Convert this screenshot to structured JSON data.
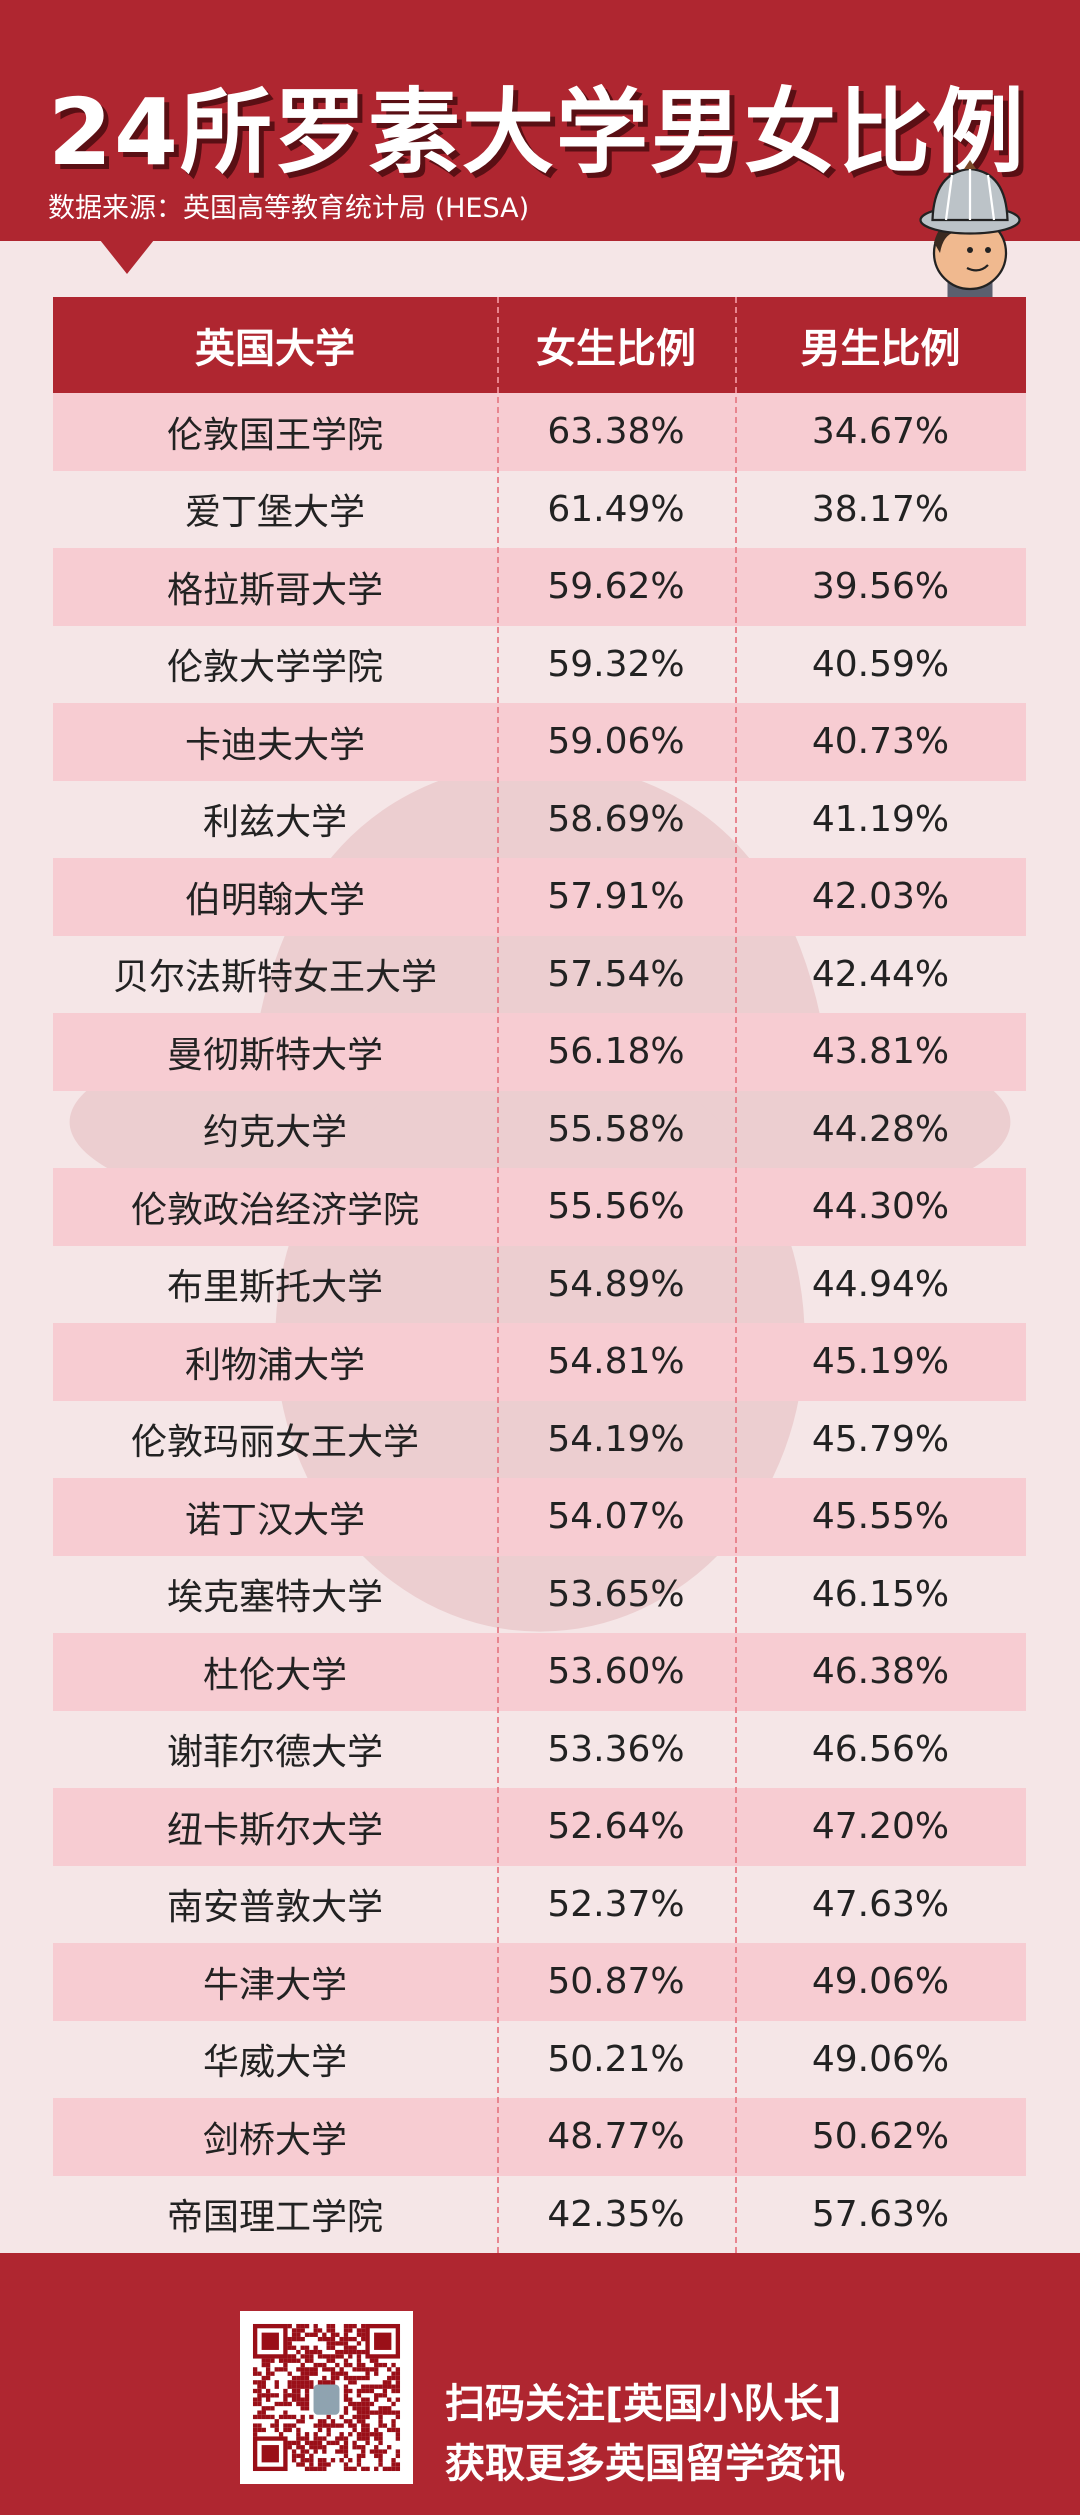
{
  "header": {
    "title": "24所罗素大学男女比例",
    "subtitle": "数据来源：英国高等教育统计局 (HESA)"
  },
  "colors": {
    "brand_red": "#af2630",
    "row_pink": "#f7ccd2",
    "background": "#f5e6e7"
  },
  "table": {
    "columns": [
      "英国大学",
      "女生比例",
      "男生比例"
    ],
    "rows": [
      [
        "伦敦国王学院",
        "63.38%",
        "34.67%"
      ],
      [
        "爱丁堡大学",
        "61.49%",
        "38.17%"
      ],
      [
        "格拉斯哥大学",
        "59.62%",
        "39.56%"
      ],
      [
        "伦敦大学学院",
        "59.32%",
        "40.59%"
      ],
      [
        "卡迪夫大学",
        "59.06%",
        "40.73%"
      ],
      [
        "利兹大学",
        "58.69%",
        "41.19%"
      ],
      [
        "伯明翰大学",
        "57.91%",
        "42.03%"
      ],
      [
        "贝尔法斯特女王大学",
        "57.54%",
        "42.44%"
      ],
      [
        "曼彻斯特大学",
        "56.18%",
        "43.81%"
      ],
      [
        "约克大学",
        "55.58%",
        "44.28%"
      ],
      [
        "伦敦政治经济学院",
        "55.56%",
        "44.30%"
      ],
      [
        "布里斯托大学",
        "54.89%",
        "44.94%"
      ],
      [
        "利物浦大学",
        "54.81%",
        "45.19%"
      ],
      [
        "伦敦玛丽女王大学",
        "54.19%",
        "45.79%"
      ],
      [
        "诺丁汉大学",
        "54.07%",
        "45.55%"
      ],
      [
        "埃克塞特大学",
        "53.65%",
        "46.15%"
      ],
      [
        "杜伦大学",
        "53.60%",
        "46.38%"
      ],
      [
        "谢菲尔德大学",
        "53.36%",
        "46.56%"
      ],
      [
        "纽卡斯尔大学",
        "52.64%",
        "47.20%"
      ],
      [
        "南安普敦大学",
        "52.37%",
        "47.63%"
      ],
      [
        "牛津大学",
        "50.87%",
        "49.06%"
      ],
      [
        "华威大学",
        "50.21%",
        "49.06%"
      ],
      [
        "剑桥大学",
        "48.77%",
        "50.62%"
      ],
      [
        "帝国理工学院",
        "42.35%",
        "57.63%"
      ]
    ]
  },
  "footer": {
    "line1": "扫码关注[英国小队长]",
    "line2": "获取更多英国留学资讯",
    "qr_icon": "qr-code"
  }
}
